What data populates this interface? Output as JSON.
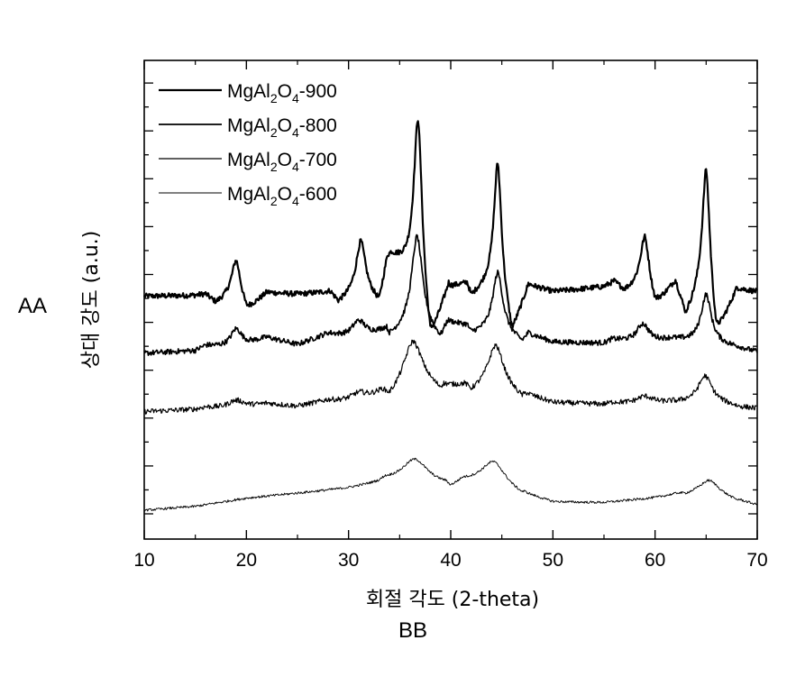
{
  "chart_data": {
    "type": "line",
    "title": "",
    "xlabel": "회절 각도 (2-theta)",
    "ylabel": "상대 강도 (a.u.)",
    "xlim": [
      10,
      70
    ],
    "ylim": [
      0,
      100
    ],
    "x_ticks": [
      10,
      20,
      30,
      40,
      50,
      60,
      70
    ],
    "y_tick_labels": "none",
    "grid": false,
    "legend_position": "top-left",
    "series": [
      {
        "name": "MgAl2O4-900",
        "label_parts": [
          "MgAl",
          "2",
          "O",
          "4",
          "-900"
        ],
        "color": "#000000",
        "peaks": [
          [
            19.0,
            7,
            0.55
          ],
          [
            31.2,
            10,
            0.55
          ],
          [
            36.8,
            33,
            0.5
          ],
          [
            44.6,
            24,
            0.45
          ],
          [
            59.0,
            10,
            0.55
          ],
          [
            65.0,
            23,
            0.45
          ]
        ],
        "values": [
          [
            10,
            50.7
          ],
          [
            15,
            50.8
          ],
          [
            17,
            51.2
          ],
          [
            19,
            57.5
          ],
          [
            20,
            51.5
          ],
          [
            25,
            51.0
          ],
          [
            29,
            51.5
          ],
          [
            31.2,
            61.0
          ],
          [
            33,
            52.5
          ],
          [
            36.8,
            84.3
          ],
          [
            38,
            57.0
          ],
          [
            40,
            52.0
          ],
          [
            42,
            53.0
          ],
          [
            44.6,
            76.0
          ],
          [
            46,
            53.5
          ],
          [
            50,
            51.5
          ],
          [
            55,
            52.5
          ],
          [
            57,
            54.5
          ],
          [
            59,
            62.0
          ],
          [
            60,
            54.0
          ],
          [
            63,
            53.0
          ],
          [
            65,
            75.0
          ],
          [
            66,
            55.0
          ],
          [
            68,
            52.0
          ],
          [
            70,
            51.5
          ]
        ]
      },
      {
        "name": "MgAl2O4-800",
        "label_parts": [
          "MgAl",
          "2",
          "O",
          "4",
          "-800"
        ],
        "color": "#000000",
        "peaks": [
          [
            19.0,
            4,
            0.65
          ],
          [
            31.0,
            4,
            0.8
          ],
          [
            36.7,
            18,
            0.65
          ],
          [
            44.6,
            12,
            0.6
          ],
          [
            58.8,
            4,
            0.7
          ],
          [
            65.0,
            10,
            0.6
          ]
        ],
        "values": [
          [
            10,
            38.8
          ],
          [
            15,
            39.3
          ],
          [
            19,
            43.5
          ],
          [
            25,
            40.5
          ],
          [
            31,
            45.0
          ],
          [
            34,
            43.5
          ],
          [
            36.7,
            61.3
          ],
          [
            39,
            45.0
          ],
          [
            42,
            44.0
          ],
          [
            44.6,
            54.3
          ],
          [
            47,
            43.0
          ],
          [
            50,
            41.0
          ],
          [
            55,
            40.8
          ],
          [
            58.8,
            44.5
          ],
          [
            62,
            41.5
          ],
          [
            65,
            50.0
          ],
          [
            68,
            40.0
          ],
          [
            70,
            39.0
          ]
        ]
      },
      {
        "name": "MgAl2O4-700",
        "label_parts": [
          "MgAl",
          "2",
          "O",
          "4",
          "-700"
        ],
        "color": "#000000",
        "peaks": [
          [
            19.0,
            2,
            1.0
          ],
          [
            31.0,
            2,
            0.9
          ],
          [
            36.3,
            9,
            1.2
          ],
          [
            44.4,
            8,
            0.95
          ],
          [
            59.0,
            2,
            1.0
          ],
          [
            64.9,
            5,
            0.8
          ]
        ],
        "values": [
          [
            10,
            26.6
          ],
          [
            15,
            27.0
          ],
          [
            19,
            28.7
          ],
          [
            25,
            27.6
          ],
          [
            31,
            30.0
          ],
          [
            34,
            30.5
          ],
          [
            36.3,
            40.3
          ],
          [
            39,
            31.0
          ],
          [
            42,
            31.5
          ],
          [
            44.4,
            39.5
          ],
          [
            47,
            30.0
          ],
          [
            50,
            28.3
          ],
          [
            55,
            28.0
          ],
          [
            59,
            29.5
          ],
          [
            62,
            28.5
          ],
          [
            64.9,
            33.5
          ],
          [
            68,
            27.5
          ],
          [
            70,
            27.2
          ]
        ]
      },
      {
        "name": "MgAl2O4-600",
        "label_parts": [
          "MgAl",
          "2",
          "O",
          "4",
          "-600"
        ],
        "color": "#000000",
        "peaks": [
          [
            36.5,
            5,
            1.5
          ],
          [
            44.2,
            5,
            1.5
          ],
          [
            65.3,
            2.5,
            1.3
          ]
        ],
        "values": [
          [
            10,
            6.0
          ],
          [
            15,
            6.8
          ],
          [
            20,
            8.5
          ],
          [
            25,
            9.5
          ],
          [
            30,
            10.5
          ],
          [
            33,
            11.5
          ],
          [
            36.5,
            16.0
          ],
          [
            40,
            10.0
          ],
          [
            44.2,
            15.5
          ],
          [
            47,
            9.0
          ],
          [
            50,
            7.5
          ],
          [
            55,
            7.5
          ],
          [
            60,
            8.5
          ],
          [
            63,
            9.5
          ],
          [
            65.3,
            12.0
          ],
          [
            68,
            8.0
          ],
          [
            70,
            7.0
          ]
        ]
      }
    ]
  },
  "annotations": {
    "left_label": "AA",
    "bottom_label": "BB"
  }
}
